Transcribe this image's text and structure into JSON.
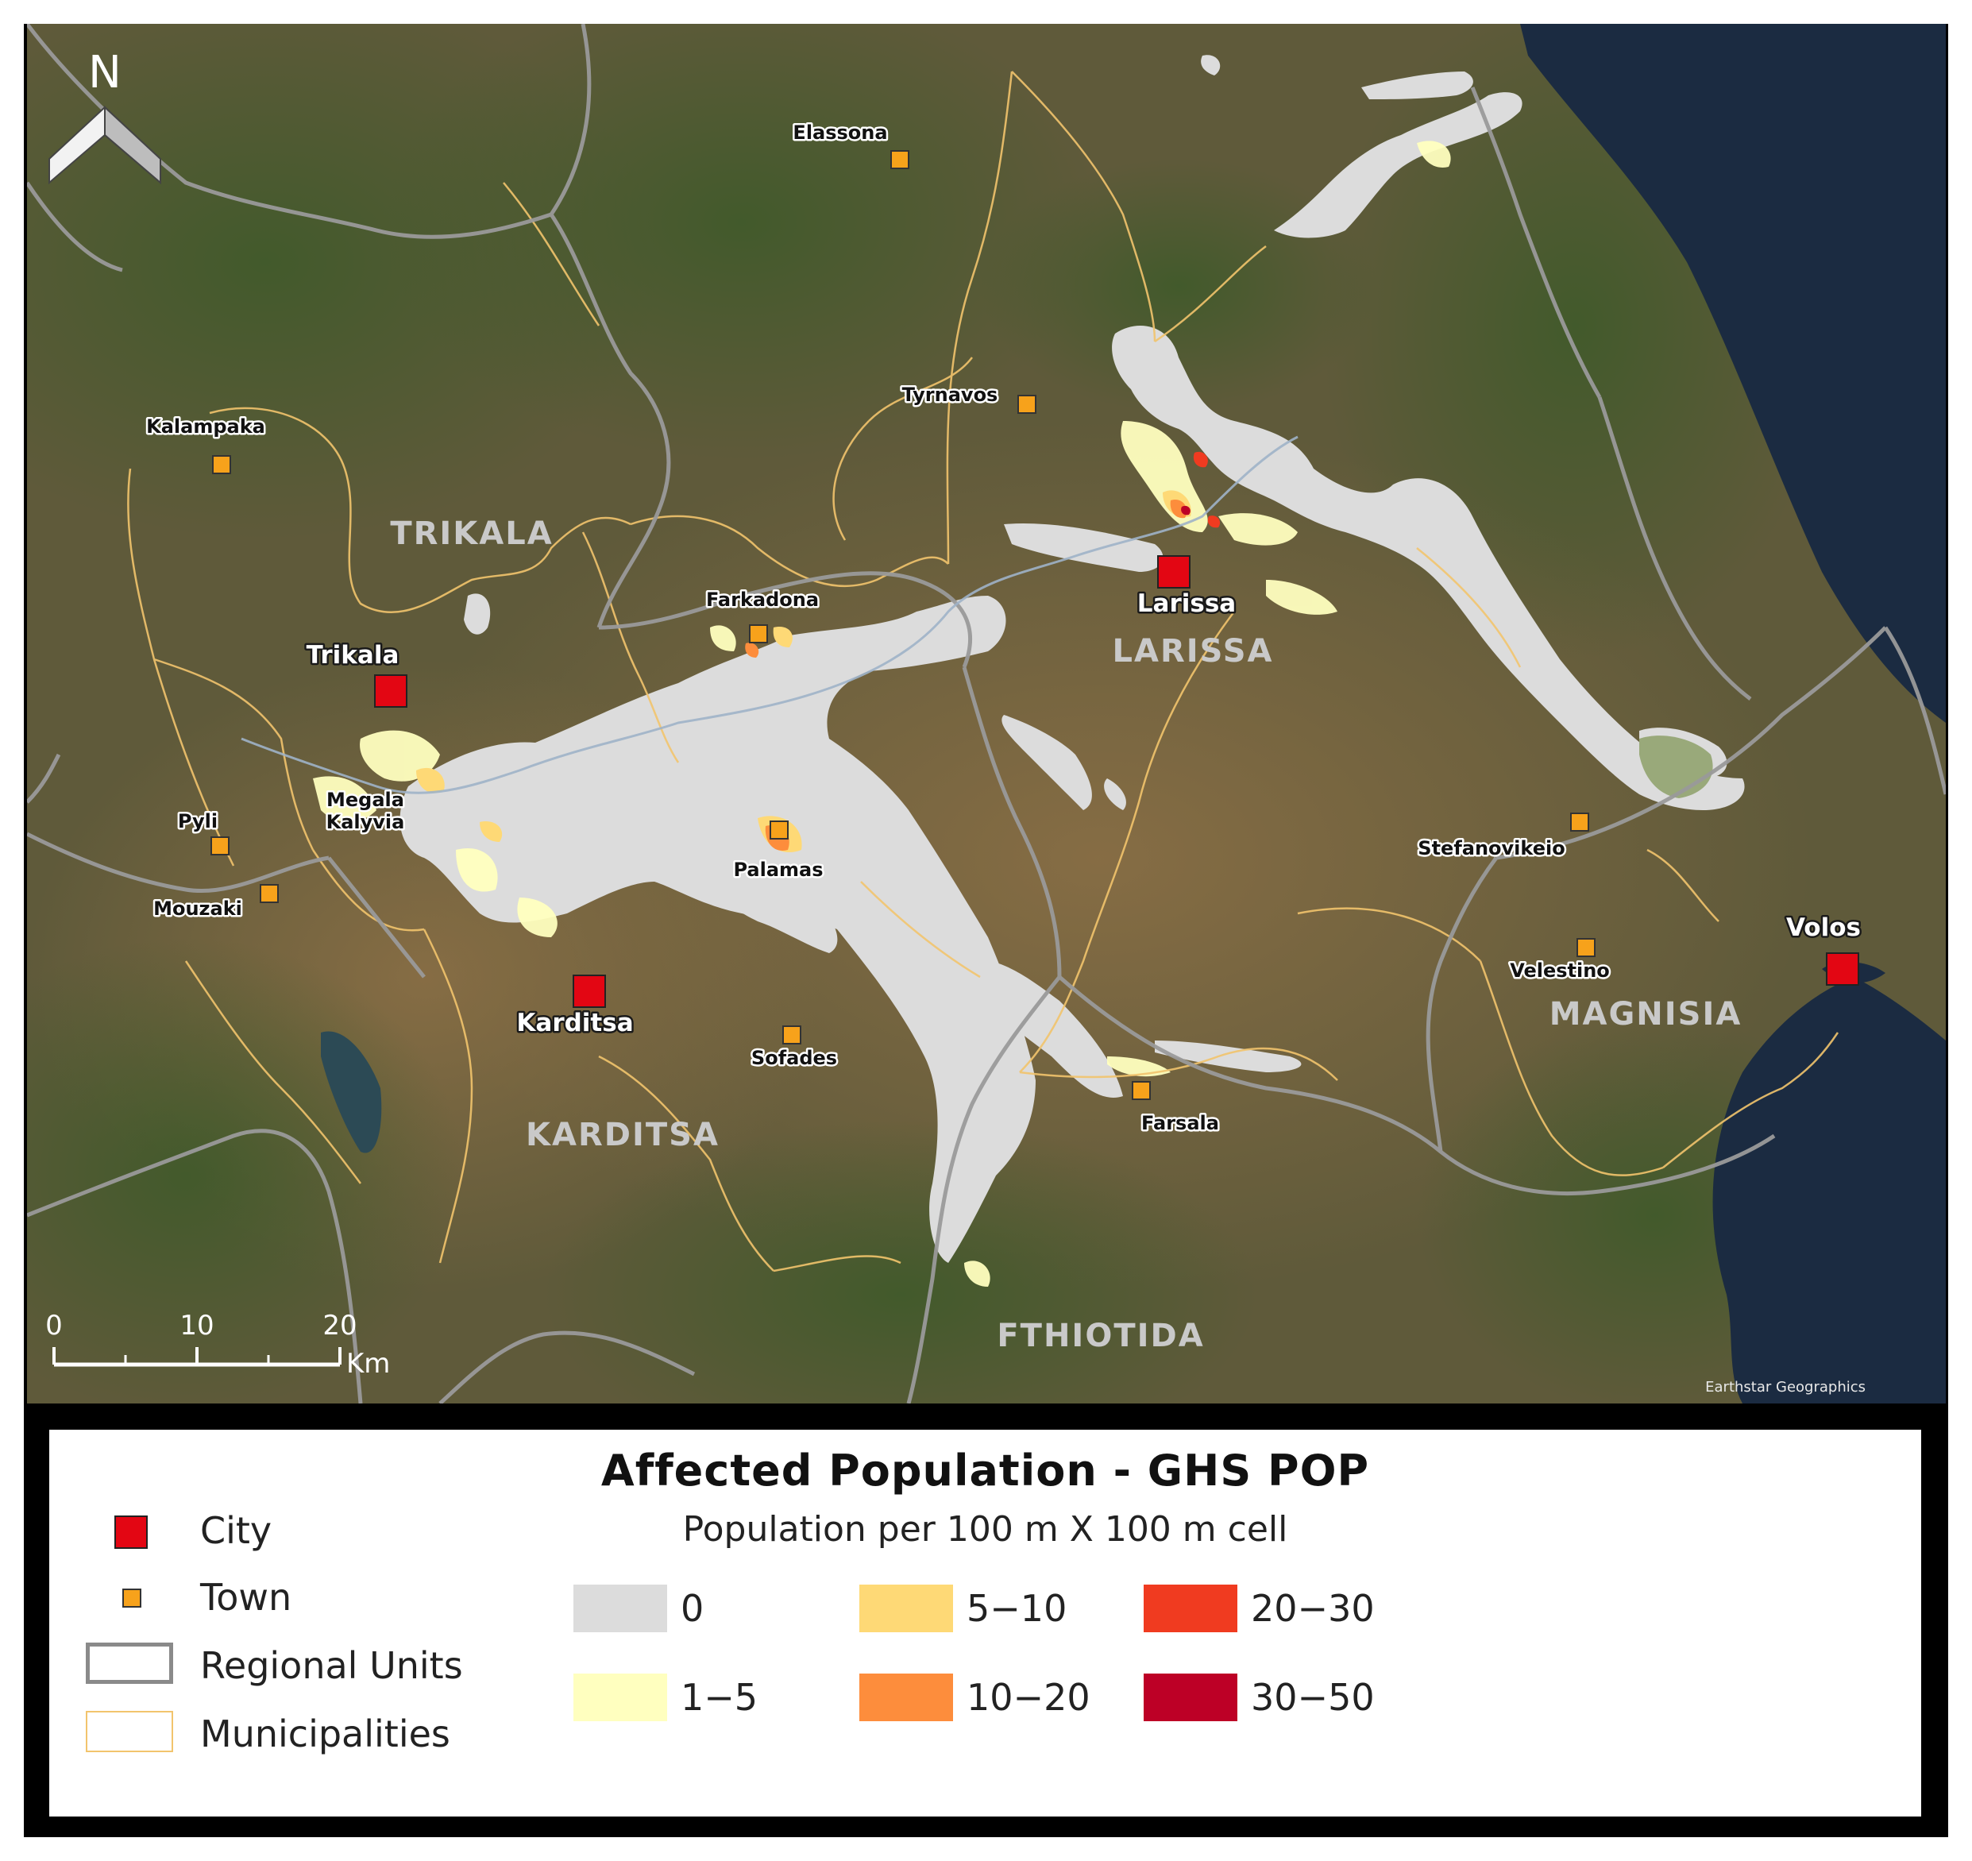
{
  "map": {
    "north_label": "N",
    "credit": "Earthstar Geographics",
    "scale": {
      "ticks": [
        "0",
        "10",
        "20"
      ],
      "unit": "Km"
    },
    "regions": [
      "TRIKALA",
      "LARISSA",
      "KARDITSA",
      "MAGNISIA",
      "FTHIOTIDA"
    ],
    "cities": [
      "Trikala",
      "Larissa",
      "Karditsa",
      "Volos"
    ],
    "towns": [
      "Elassona",
      "Tyrnavos",
      "Kalampaka",
      "Farkadona",
      "Pyli",
      "Megala Kalyvia",
      "Mouzaki",
      "Palamas",
      "Sofades",
      "Farsala",
      "Stefanovikeio",
      "Velestino"
    ],
    "colors": {
      "city": "#e30613",
      "town": "#f7a21b",
      "regional_units": "#9a9a9a",
      "municipalities": "#f2c46d"
    }
  },
  "legend": {
    "title": "Affected Population - GHS POP",
    "subtitle": "Population per 100 m X 100 m cell",
    "symbols": [
      "City",
      "Town",
      "Regional Units",
      "Municipalities"
    ],
    "classes": [
      {
        "label": "0",
        "color": "#dcdcdc"
      },
      {
        "label": "1−5",
        "color": "#ffffbf"
      },
      {
        "label": "5−10",
        "color": "#fed976"
      },
      {
        "label": "10−20",
        "color": "#fd8d3c"
      },
      {
        "label": "20−30",
        "color": "#f03b20"
      },
      {
        "label": "30−50",
        "color": "#bd0026"
      }
    ]
  }
}
